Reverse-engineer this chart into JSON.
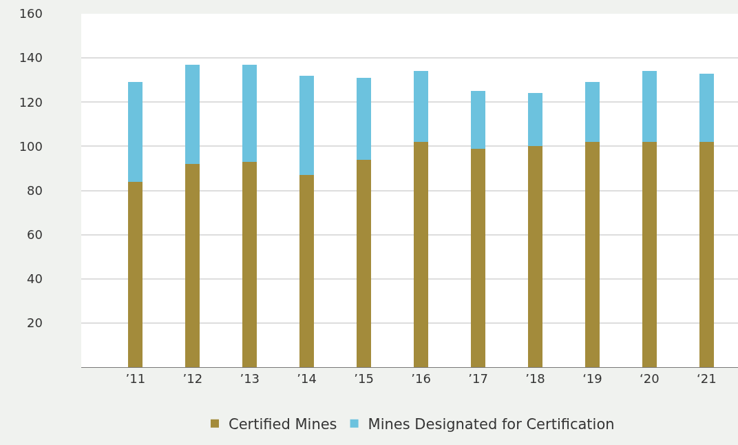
{
  "chart_data": {
    "type": "bar",
    "stacked": true,
    "categories": [
      "’11",
      "’12",
      "’13",
      "’14",
      "’15",
      "’16",
      "’17",
      "’18",
      "‘19",
      "‘20",
      "‘21"
    ],
    "series": [
      {
        "name": "Certified Mines",
        "color": "#a38b3b",
        "values": [
          84,
          92,
          93,
          87,
          94,
          102,
          99,
          100,
          102,
          102,
          102
        ]
      },
      {
        "name": "Mines Designated for Certification",
        "color": "#6cc2de",
        "values": [
          45,
          45,
          44,
          45,
          37,
          32,
          26,
          24,
          27,
          32,
          31
        ]
      }
    ],
    "ylim": [
      0,
      160
    ],
    "yticks": [
      20,
      40,
      60,
      80,
      100,
      120,
      140,
      160
    ],
    "grid": "y",
    "legend": "bottom"
  }
}
